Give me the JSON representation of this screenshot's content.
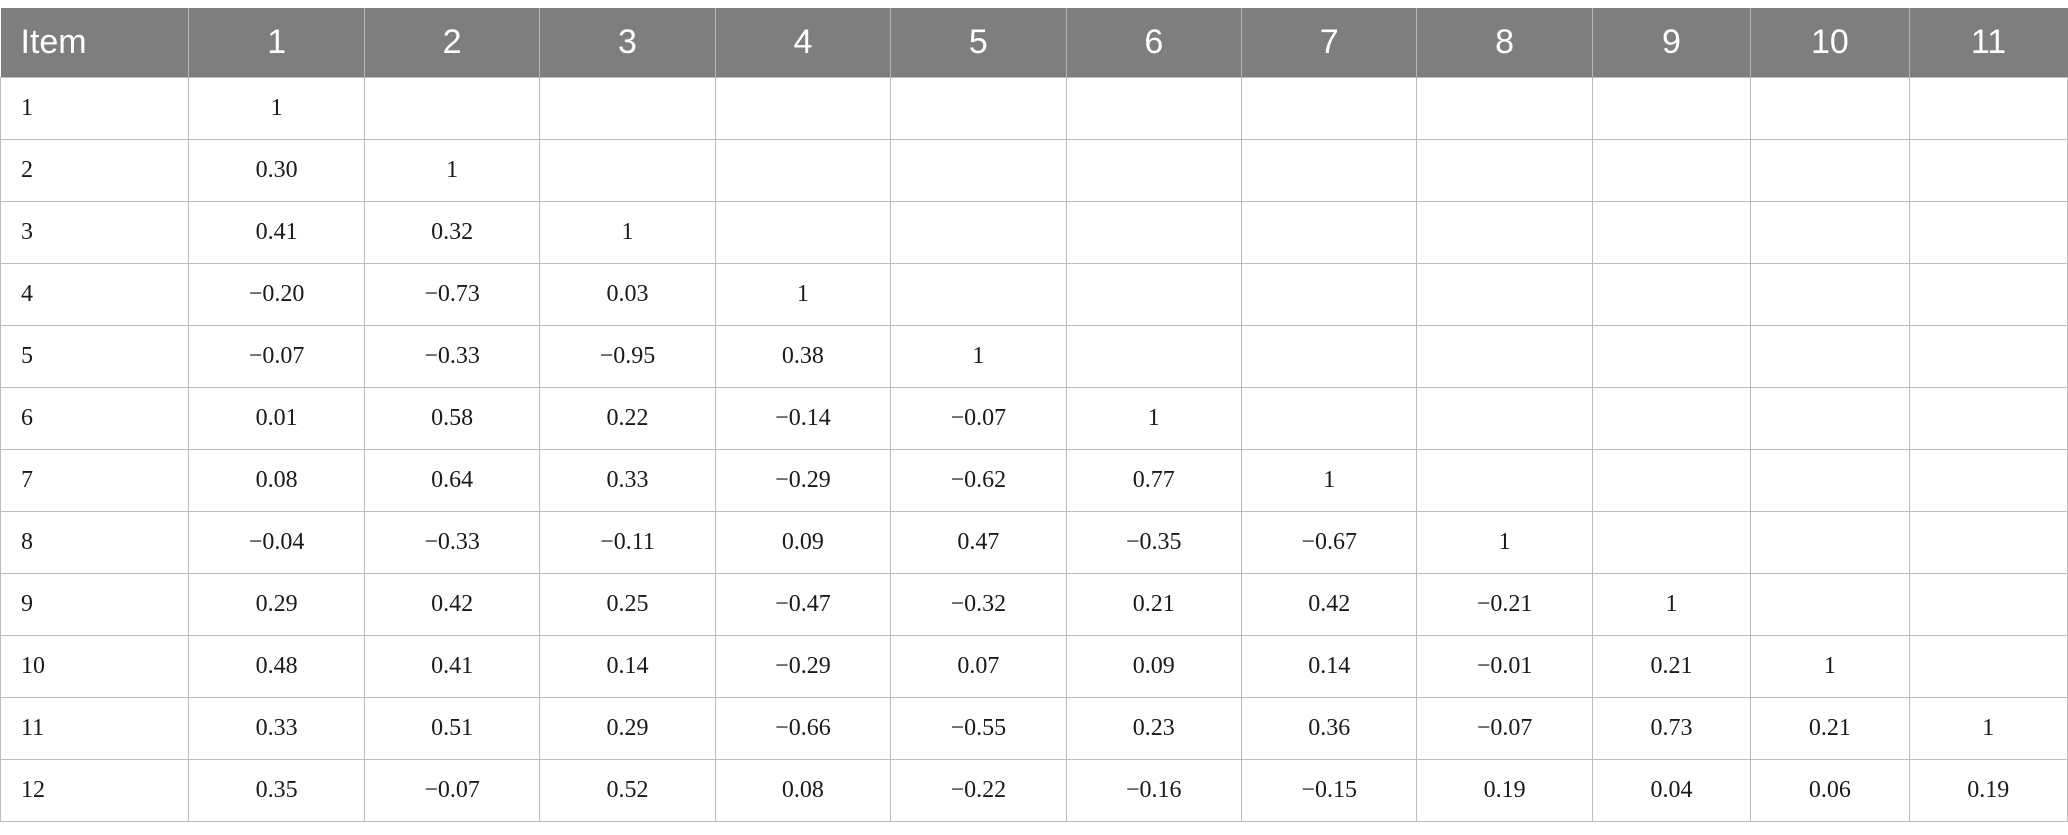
{
  "table": {
    "headers": [
      "Item",
      "1",
      "2",
      "3",
      "4",
      "5",
      "6",
      "7",
      "8",
      "9",
      "10",
      "11"
    ],
    "rows": [
      [
        "1",
        "1",
        "",
        "",
        "",
        "",
        "",
        "",
        "",
        "",
        "",
        ""
      ],
      [
        "2",
        "0.30",
        "1",
        "",
        "",
        "",
        "",
        "",
        "",
        "",
        "",
        ""
      ],
      [
        "3",
        "0.41",
        "0.32",
        "1",
        "",
        "",
        "",
        "",
        "",
        "",
        "",
        ""
      ],
      [
        "4",
        "−0.20",
        "−0.73",
        "0.03",
        "1",
        "",
        "",
        "",
        "",
        "",
        "",
        ""
      ],
      [
        "5",
        "−0.07",
        "−0.33",
        "−0.95",
        "0.38",
        "1",
        "",
        "",
        "",
        "",
        "",
        ""
      ],
      [
        "6",
        "0.01",
        "0.58",
        "0.22",
        "−0.14",
        "−0.07",
        "1",
        "",
        "",
        "",
        "",
        ""
      ],
      [
        "7",
        "0.08",
        "0.64",
        "0.33",
        "−0.29",
        "−0.62",
        "0.77",
        "1",
        "",
        "",
        "",
        ""
      ],
      [
        "8",
        "−0.04",
        "−0.33",
        "−0.11",
        "0.09",
        "0.47",
        "−0.35",
        "−0.67",
        "1",
        "",
        "",
        ""
      ],
      [
        "9",
        "0.29",
        "0.42",
        "0.25",
        "−0.47",
        "−0.32",
        "0.21",
        "0.42",
        "−0.21",
        "1",
        "",
        ""
      ],
      [
        "10",
        "0.48",
        "0.41",
        "0.14",
        "−0.29",
        "0.07",
        "0.09",
        "0.14",
        "−0.01",
        "0.21",
        "1",
        ""
      ],
      [
        "11",
        "0.33",
        "0.51",
        "0.29",
        "−0.66",
        "−0.55",
        "0.23",
        "0.36",
        "−0.07",
        "0.73",
        "0.21",
        "1"
      ],
      [
        "12",
        "0.35",
        "−0.07",
        "0.52",
        "0.08",
        "−0.22",
        "−0.16",
        "−0.15",
        "0.19",
        "0.04",
        "0.06",
        "0.19"
      ]
    ]
  },
  "colors": {
    "header_bg": "#7d7e7d",
    "header_text": "#ffffff",
    "grid": "#bdbdbd"
  }
}
